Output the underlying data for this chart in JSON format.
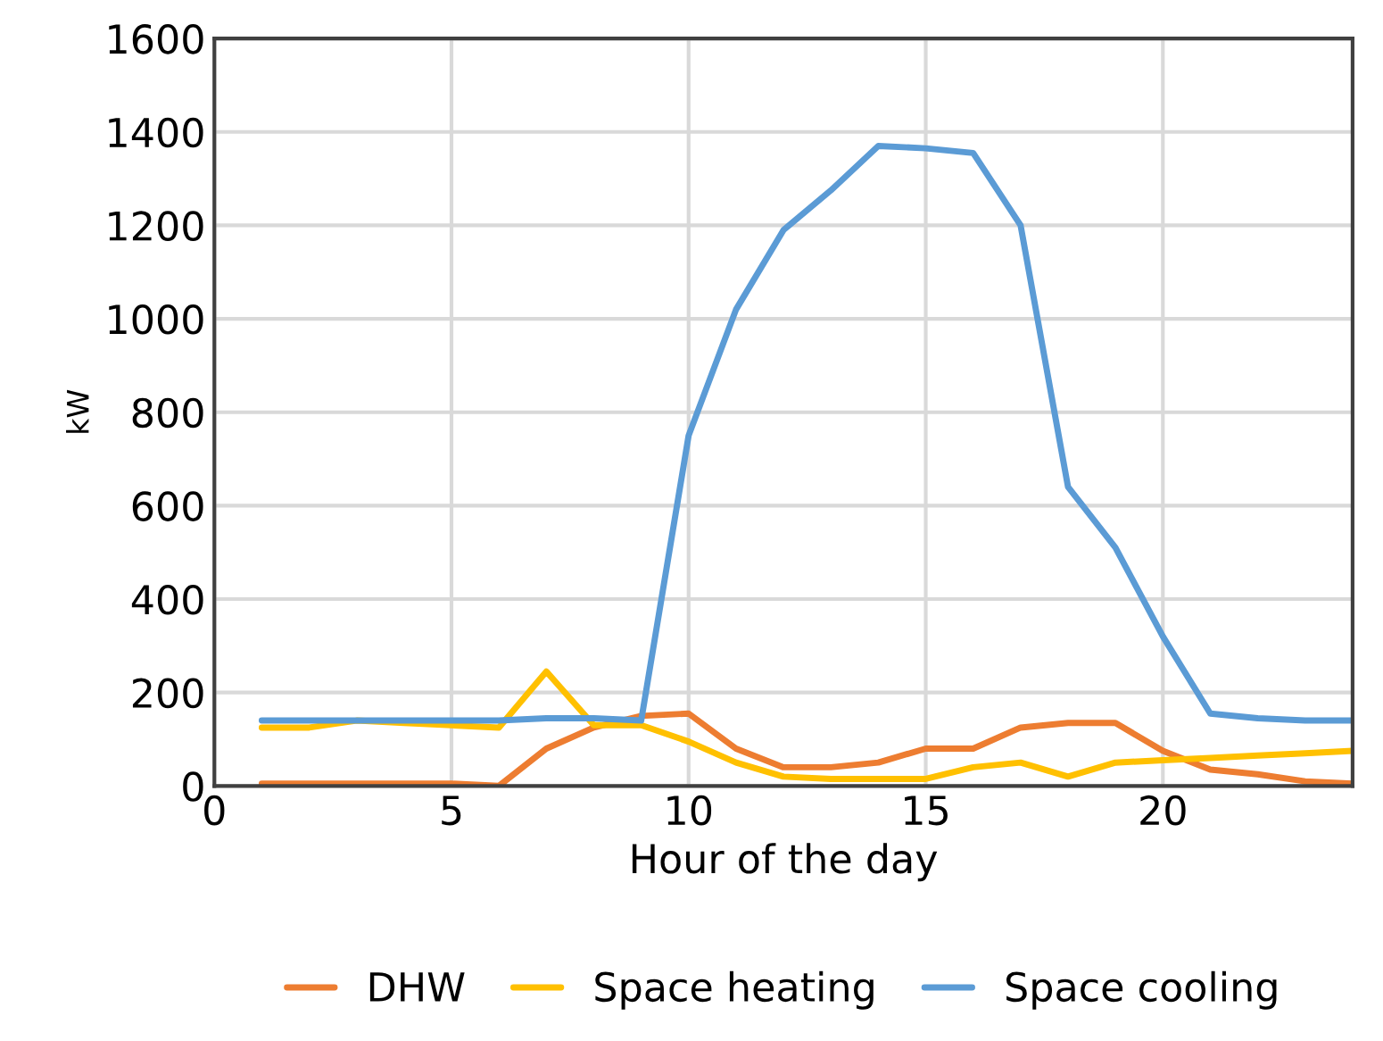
{
  "chart_data": {
    "type": "line",
    "xlabel": "Hour of the day",
    "ylabel": "kW",
    "x": [
      1,
      2,
      3,
      4,
      5,
      6,
      7,
      8,
      9,
      10,
      11,
      12,
      13,
      14,
      15,
      16,
      17,
      18,
      19,
      20,
      21,
      22,
      23,
      24
    ],
    "series": [
      {
        "name": "DHW",
        "color": "#ed7d31",
        "values": [
          5,
          5,
          5,
          5,
          5,
          0,
          80,
          125,
          150,
          155,
          80,
          40,
          40,
          50,
          80,
          80,
          125,
          135,
          135,
          75,
          35,
          25,
          10,
          5
        ]
      },
      {
        "name": "Space heating",
        "color": "#ffc000",
        "values": [
          125,
          125,
          140,
          135,
          130,
          125,
          245,
          130,
          130,
          95,
          50,
          20,
          15,
          15,
          15,
          40,
          50,
          20,
          50,
          55,
          60,
          65,
          70,
          75
        ]
      },
      {
        "name": "Space cooling",
        "color": "#5b9bd5",
        "values": [
          140,
          140,
          140,
          140,
          140,
          140,
          145,
          145,
          140,
          750,
          1020,
          1190,
          1275,
          1370,
          1365,
          1355,
          1200,
          640,
          510,
          320,
          155,
          145,
          140,
          140
        ]
      }
    ],
    "xlim": [
      0,
      24
    ],
    "xticks": [
      0,
      5,
      10,
      15,
      20
    ],
    "ylim": [
      0,
      1600
    ],
    "yticks": [
      0,
      200,
      400,
      600,
      800,
      1000,
      1200,
      1400,
      1600
    ],
    "grid": true,
    "legend": "bottom",
    "marker": "none",
    "line_style": "solid"
  }
}
